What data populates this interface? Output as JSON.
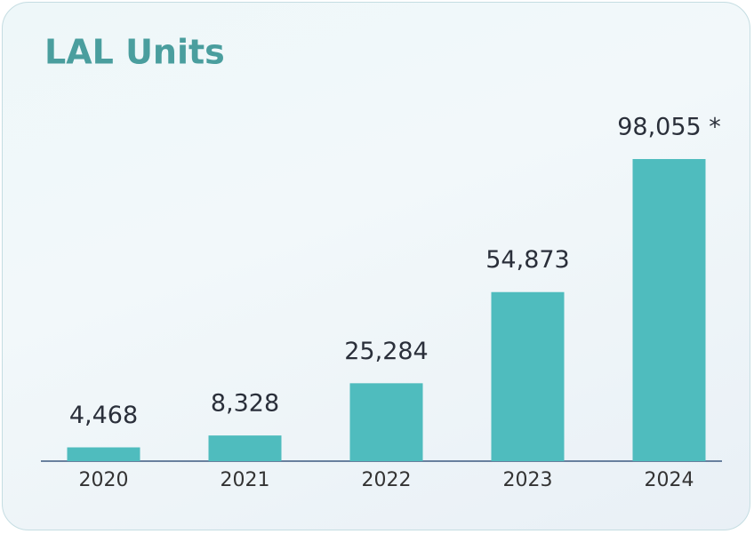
{
  "chart_data": {
    "type": "bar",
    "title": "LAL Units",
    "categories": [
      "2020",
      "2021",
      "2022",
      "2023",
      "2024"
    ],
    "values": [
      4468,
      8328,
      25284,
      54873,
      98055
    ],
    "value_labels": [
      "4,468",
      "8,328",
      "25,284",
      "54,873",
      "98,055 *"
    ],
    "color": "#4fbcbe"
  }
}
